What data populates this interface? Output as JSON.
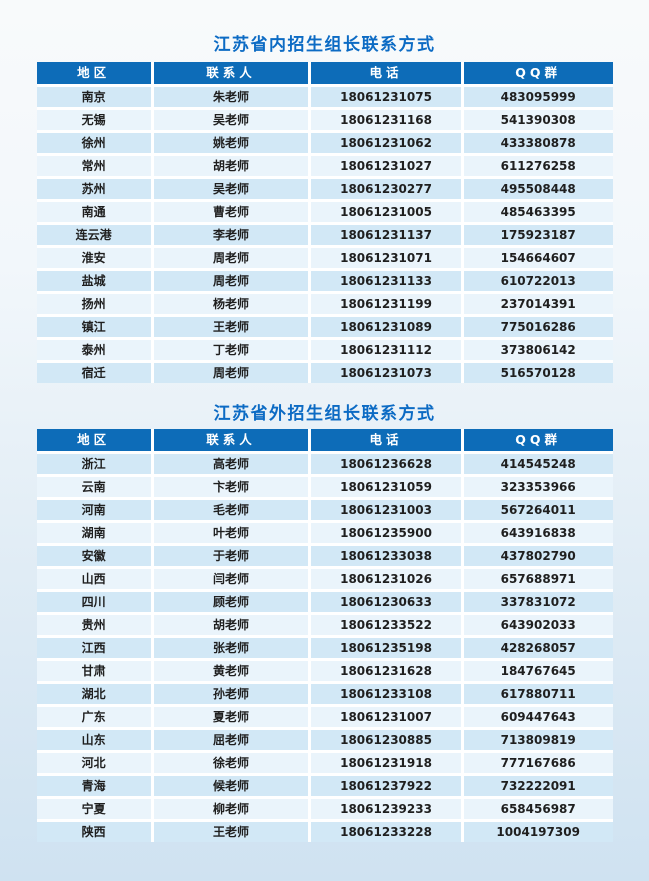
{
  "colors": {
    "title": "#0c6bc4",
    "header_bg": "#0d6cb8",
    "header_text": "#ffffff",
    "row_odd_bg": "#d2e8f6",
    "row_even_bg": "#eaf4fb",
    "cell_text": "#1f1f1f",
    "page_bg_top": "#f8fafb",
    "page_bg_bottom": "#cfe2f1"
  },
  "tables": [
    {
      "title": "江苏省内招生组长联系方式",
      "columns": [
        "地区",
        "联系人",
        "电话",
        "QQ群"
      ],
      "rows": [
        [
          "南京",
          "朱老师",
          "18061231075",
          "483095999"
        ],
        [
          "无锡",
          "吴老师",
          "18061231168",
          "541390308"
        ],
        [
          "徐州",
          "姚老师",
          "18061231062",
          "433380878"
        ],
        [
          "常州",
          "胡老师",
          "18061231027",
          "611276258"
        ],
        [
          "苏州",
          "吴老师",
          "18061230277",
          "495508448"
        ],
        [
          "南通",
          "曹老师",
          "18061231005",
          "485463395"
        ],
        [
          "连云港",
          "李老师",
          "18061231137",
          "175923187"
        ],
        [
          "淮安",
          "周老师",
          "18061231071",
          "154664607"
        ],
        [
          "盐城",
          "周老师",
          "18061231133",
          "610722013"
        ],
        [
          "扬州",
          "杨老师",
          "18061231199",
          "237014391"
        ],
        [
          "镇江",
          "王老师",
          "18061231089",
          "775016286"
        ],
        [
          "泰州",
          "丁老师",
          "18061231112",
          "373806142"
        ],
        [
          "宿迁",
          "周老师",
          "18061231073",
          "516570128"
        ]
      ]
    },
    {
      "title": "江苏省外招生组长联系方式",
      "columns": [
        "地区",
        "联系人",
        "电话",
        "QQ群"
      ],
      "rows": [
        [
          "浙江",
          "高老师",
          "18061236628",
          "414545248"
        ],
        [
          "云南",
          "卞老师",
          "18061231059",
          "323353966"
        ],
        [
          "河南",
          "毛老师",
          "18061231003",
          "567264011"
        ],
        [
          "湖南",
          "叶老师",
          "18061235900",
          "643916838"
        ],
        [
          "安徽",
          "于老师",
          "18061233038",
          "437802790"
        ],
        [
          "山西",
          "闫老师",
          "18061231026",
          "657688971"
        ],
        [
          "四川",
          "顾老师",
          "18061230633",
          "337831072"
        ],
        [
          "贵州",
          "胡老师",
          "18061233522",
          "643902033"
        ],
        [
          "江西",
          "张老师",
          "18061235198",
          "428268057"
        ],
        [
          "甘肃",
          "黄老师",
          "18061231628",
          "184767645"
        ],
        [
          "湖北",
          "孙老师",
          "18061233108",
          "617880711"
        ],
        [
          "广东",
          "夏老师",
          "18061231007",
          "609447643"
        ],
        [
          "山东",
          "屈老师",
          "18061230885",
          "713809819"
        ],
        [
          "河北",
          "徐老师",
          "18061231918",
          "777167686"
        ],
        [
          "青海",
          "候老师",
          "18061237922",
          "732222091"
        ],
        [
          "宁夏",
          "柳老师",
          "18061239233",
          "658456987"
        ],
        [
          "陕西",
          "王老师",
          "18061233228",
          "1004197309"
        ]
      ]
    }
  ]
}
